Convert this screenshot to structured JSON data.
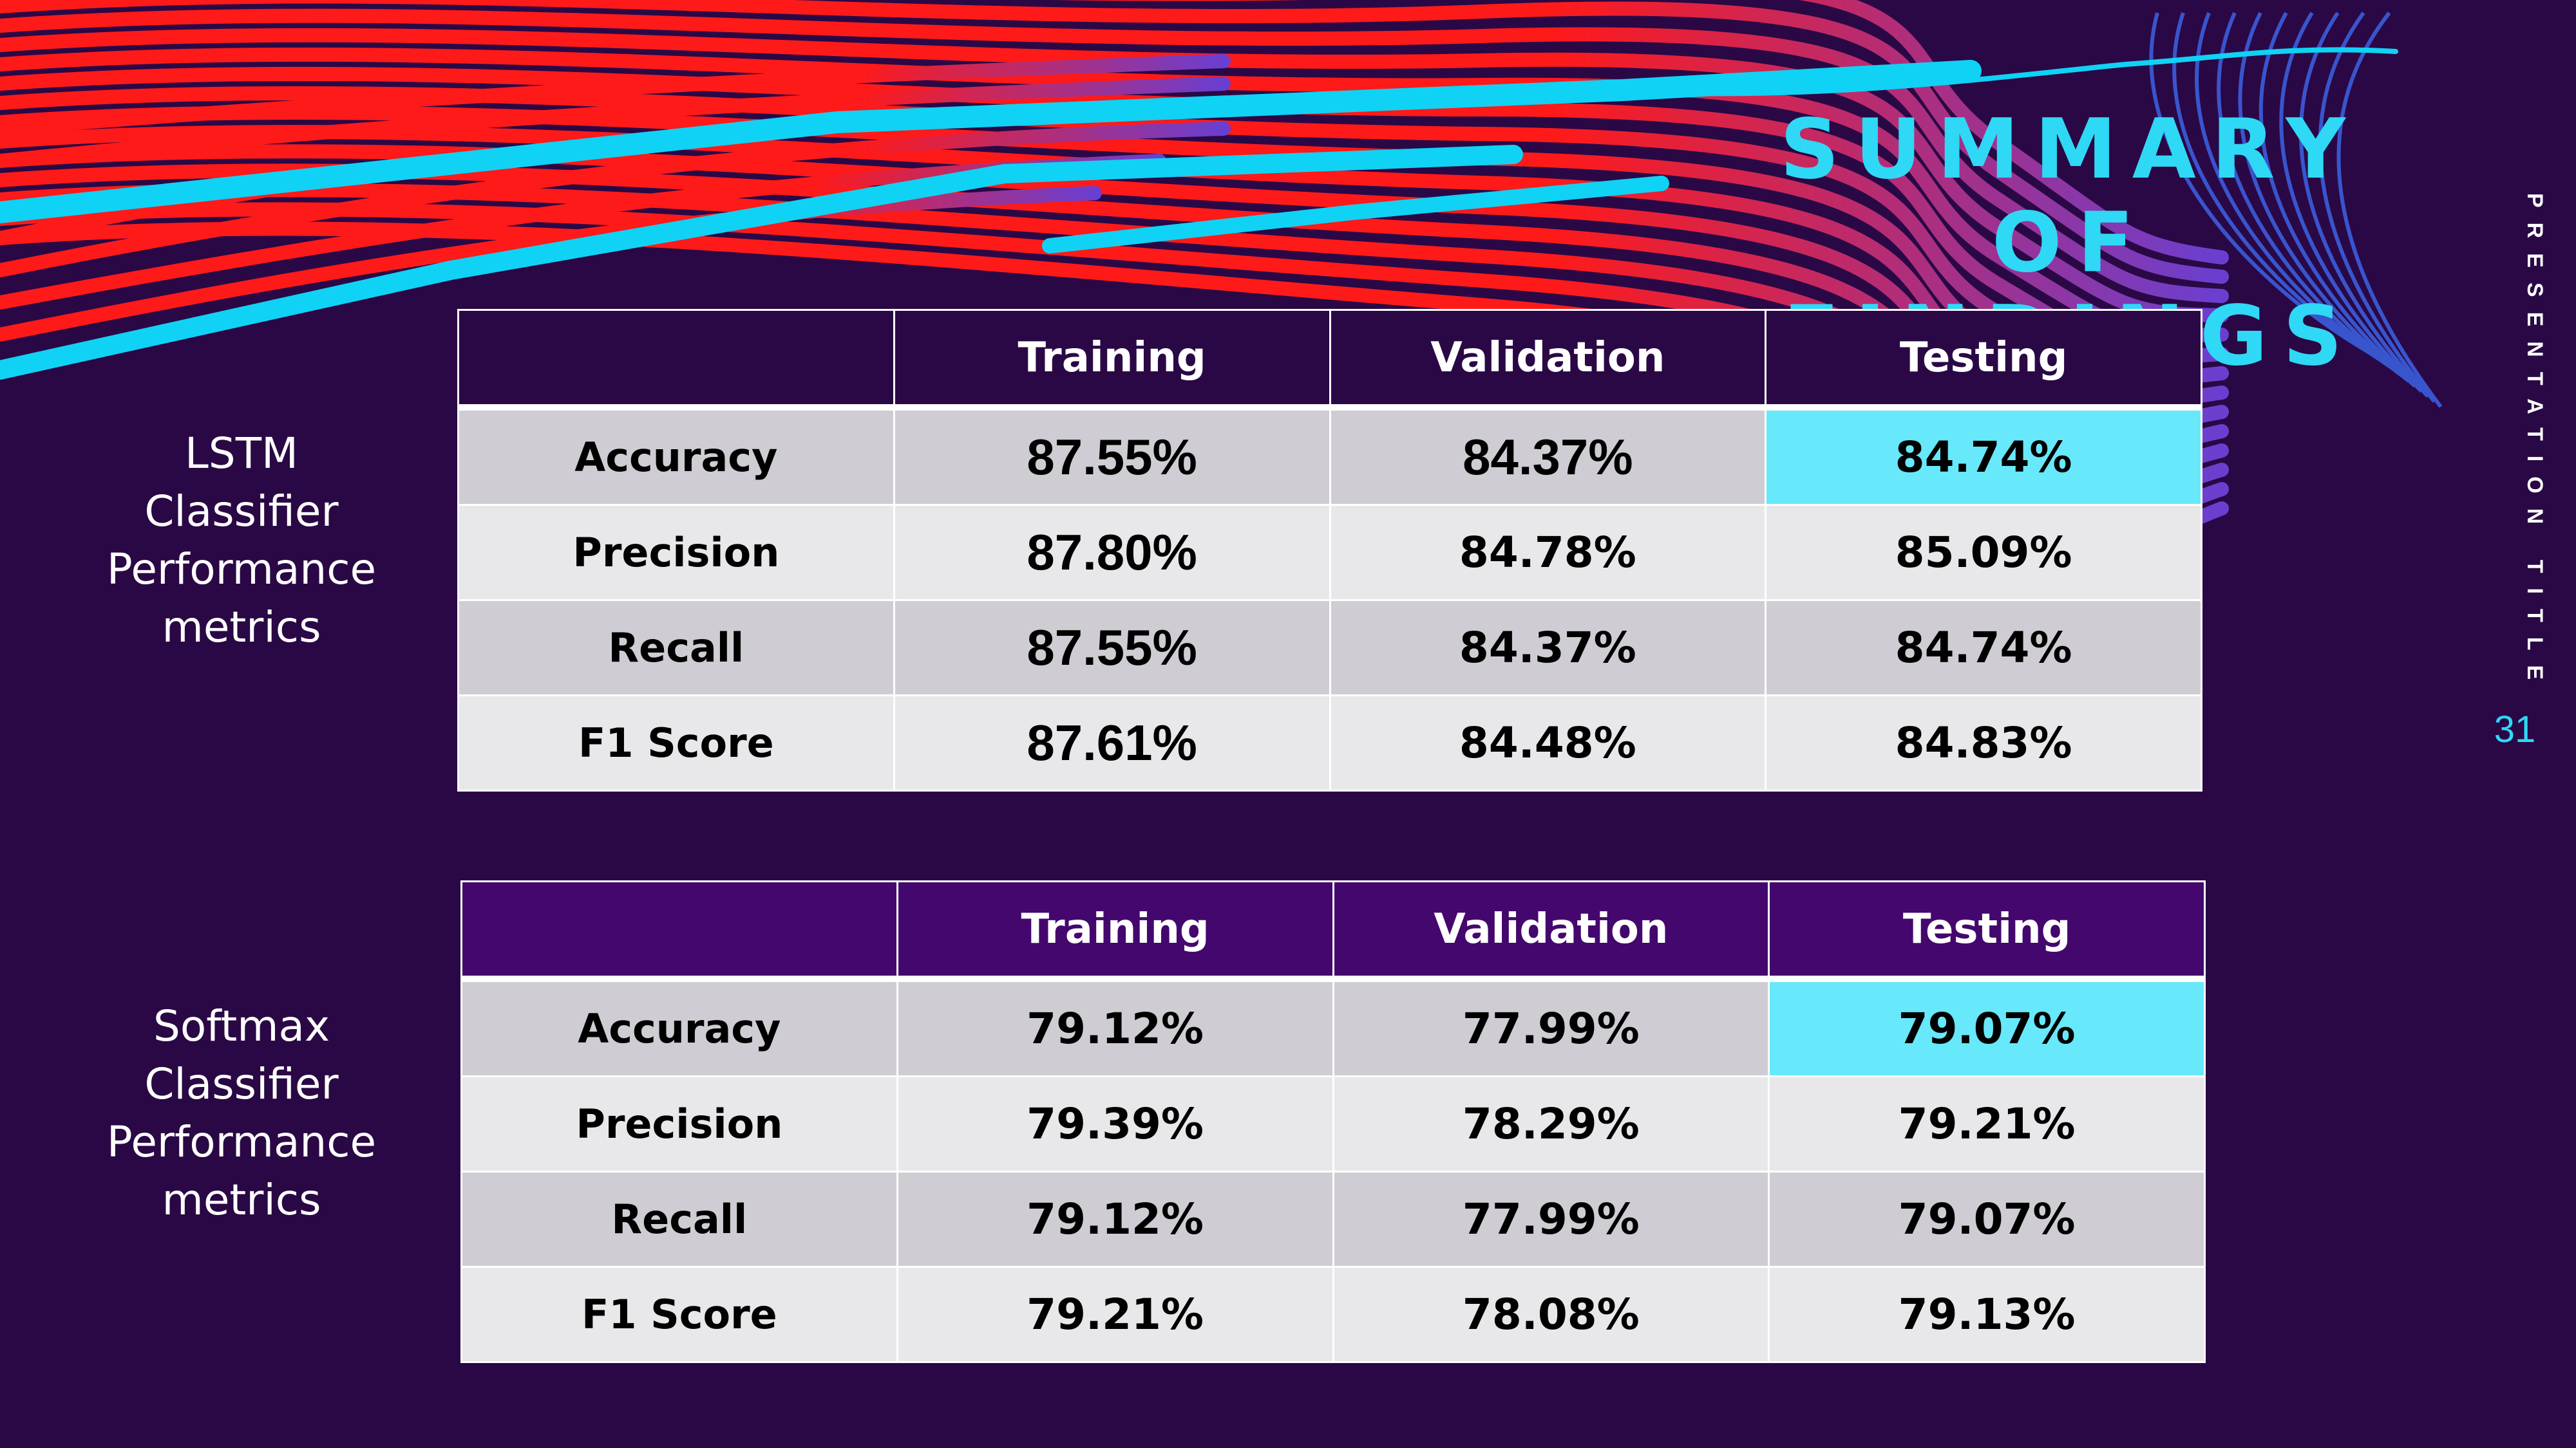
{
  "slide": {
    "title_line1": "SUMMARY OF",
    "title_line2": "FINDINGS",
    "vertical_title": "PRESENTATION TITLE",
    "page_number": "31"
  },
  "colors": {
    "background": "#2a0845",
    "accent": "#2fd8f5",
    "highlight": "#67e8fb",
    "red_lines": "#ff1a1a"
  },
  "lstm": {
    "label": "LSTM Classifier Performance metrics",
    "headers": [
      "",
      "Training",
      "Validation",
      "Testing"
    ],
    "rows": [
      {
        "metric": "Accuracy",
        "training": "87.55%",
        "validation": "84.37%",
        "testing": "84.74%"
      },
      {
        "metric": "Precision",
        "training": "87.80%",
        "validation": "84.78%",
        "testing": "85.09%"
      },
      {
        "metric": "Recall",
        "training": "87.55%",
        "validation": "84.37%",
        "testing": "84.74%"
      },
      {
        "metric": "F1 Score",
        "training": "87.61%",
        "validation": "84.48%",
        "testing": "84.83%"
      }
    ]
  },
  "softmax": {
    "label": "Softmax Classifier Performance metrics",
    "headers": [
      "",
      "Training",
      "Validation",
      "Testing"
    ],
    "rows": [
      {
        "metric": "Accuracy",
        "training": "79.12%",
        "validation": "77.99%",
        "testing": "79.07%"
      },
      {
        "metric": "Precision",
        "training": "79.39%",
        "validation": "78.29%",
        "testing": "79.21%"
      },
      {
        "metric": "Recall",
        "training": "79.12%",
        "validation": "77.99%",
        "testing": "79.07%"
      },
      {
        "metric": "F1 Score",
        "training": "79.21%",
        "validation": "78.08%",
        "testing": "79.13%"
      }
    ]
  }
}
